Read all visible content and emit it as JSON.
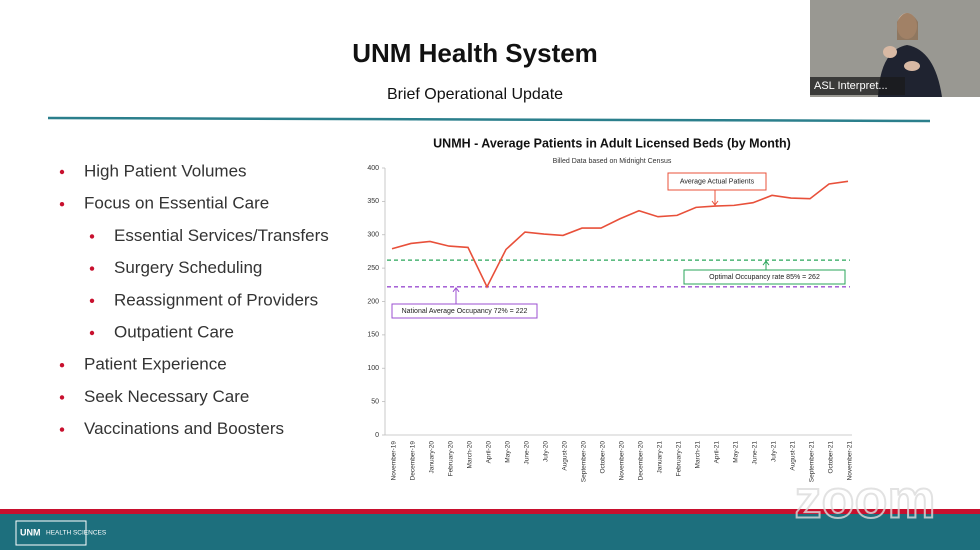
{
  "slide": {
    "title": "UNM Health System",
    "subtitle": "Brief Operational Update",
    "bullets": [
      {
        "text": "High Patient Volumes",
        "level": 1
      },
      {
        "text": "Focus on Essential Care",
        "level": 1
      },
      {
        "text": "Essential Services/Transfers",
        "level": 2
      },
      {
        "text": "Surgery Scheduling",
        "level": 2
      },
      {
        "text": "Reassignment of Providers",
        "level": 2
      },
      {
        "text": "Outpatient Care",
        "level": 2
      },
      {
        "text": "Patient Experience",
        "level": 1
      },
      {
        "text": "Seek Necessary Care",
        "level": 1
      },
      {
        "text": "Vaccinations and Boosters",
        "level": 1
      }
    ],
    "logo": "HEALTH SCIENCES"
  },
  "video": {
    "label": "ASL Interpret..."
  },
  "watermark": "zoom",
  "chart_data": {
    "type": "line",
    "title": "UNMH - Average Patients in Adult Licensed Beds (by Month)",
    "subtitle": "Billed Data based on Midnight Census",
    "categories": [
      "November-19",
      "December-19",
      "January-20",
      "February-20",
      "March-20",
      "April-20",
      "May-20",
      "June-20",
      "July-20",
      "August-20",
      "September-20",
      "October-20",
      "November-20",
      "December-20",
      "January-21",
      "February-21",
      "March-21",
      "April-21",
      "May-21",
      "June-21",
      "July-21",
      "August-21",
      "September-21",
      "October-21",
      "November-21"
    ],
    "series": [
      {
        "name": "Average Actual Patients",
        "color": "#e8503a",
        "values": [
          279,
          287,
          290,
          283,
          281,
          222,
          278,
          304,
          301,
          299,
          310,
          310,
          324,
          336,
          327,
          329,
          341,
          343,
          344,
          348,
          359,
          355,
          354,
          376,
          380
        ]
      }
    ],
    "reference_lines": [
      {
        "label": "Optimal Occupancy rate 85% = 262",
        "value": 262,
        "color": "#2aa55a"
      },
      {
        "label": "National Average Occupancy 72% = 222",
        "value": 222,
        "color": "#9b4fd0"
      }
    ],
    "ylim": [
      0,
      400
    ],
    "yticks": [
      0,
      50,
      100,
      150,
      200,
      250,
      300,
      350,
      400
    ]
  }
}
